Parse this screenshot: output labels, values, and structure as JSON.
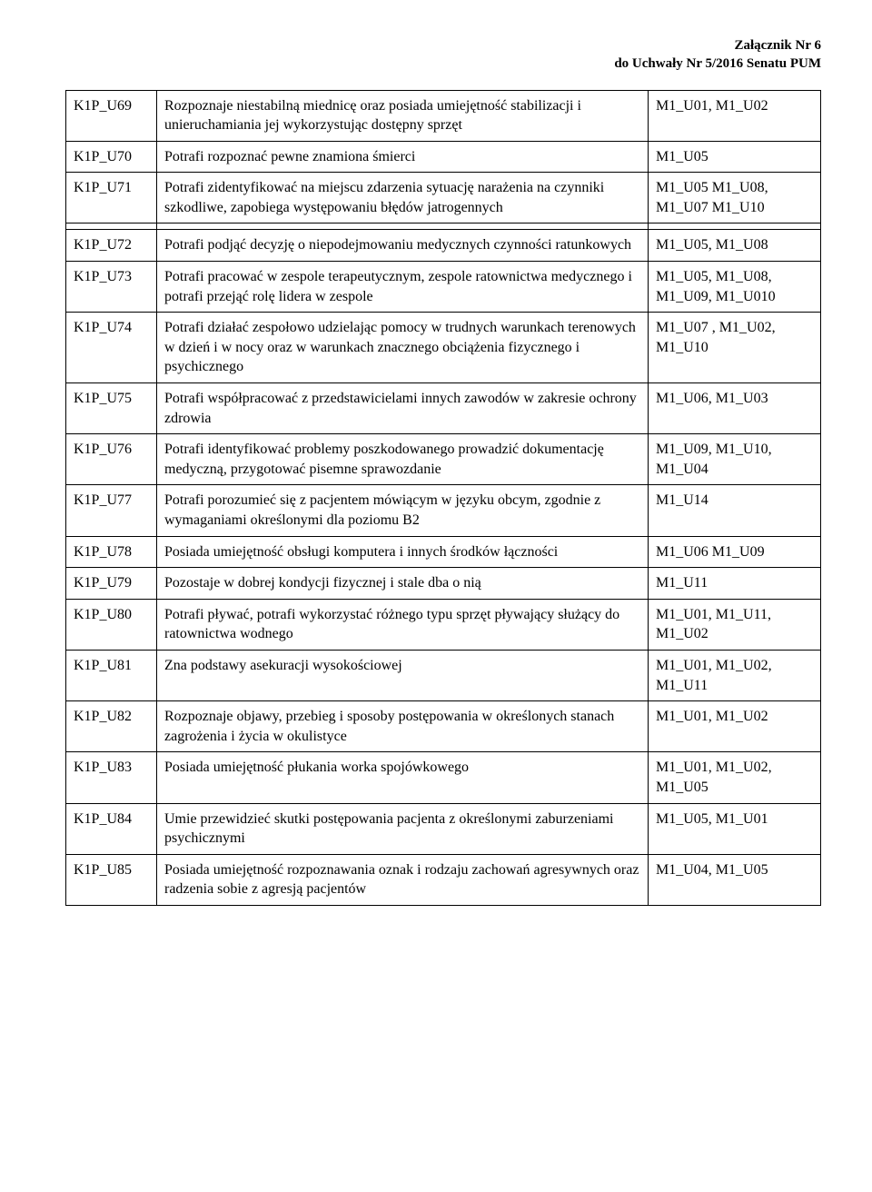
{
  "header": {
    "line1": "Załącznik Nr 6",
    "line2": "do Uchwały Nr 5/2016 Senatu PUM"
  },
  "groups": [
    {
      "rows": [
        {
          "code": "K1P_U69",
          "desc": "Rozpoznaje niestabilną miednicę oraz posiada umiejętność stabilizacji i unieruchamiania jej wykorzystując dostępny sprzęt",
          "ref": "M1_U01, M1_U02"
        },
        {
          "code": "K1P_U70",
          "desc": "Potrafi rozpoznać pewne znamiona śmierci",
          "ref": "M1_U05"
        },
        {
          "code": "K1P_U71",
          "desc": "Potrafi zidentyfikować na miejscu zdarzenia sytuację narażenia na czynniki szkodliwe, zapobiega występowaniu błędów jatrogennych",
          "ref": "M1_U05 M1_U08, M1_U07 M1_U10"
        }
      ]
    },
    {
      "rows": [
        {
          "code": "K1P_U72",
          "desc": "Potrafi podjąć decyzję o niepodejmowaniu medycznych czynności ratunkowych",
          "ref": "M1_U05, M1_U08"
        },
        {
          "code": "K1P_U73",
          "desc": "Potrafi pracować w zespole terapeutycznym, zespole ratownictwa medycznego i potrafi przejąć rolę lidera w zespole",
          "ref": "M1_U05, M1_U08, M1_U09, M1_U010"
        },
        {
          "code": "K1P_U74",
          "desc": "Potrafi działać zespołowo udzielając pomocy w trudnych warunkach terenowych w dzień i w nocy oraz w warunkach znacznego obciążenia fizycznego i psychicznego",
          "ref": "M1_U07 , M1_U02, M1_U10"
        },
        {
          "code": "K1P_U75",
          "desc": "Potrafi współpracować z przedstawicielami innych zawodów w zakresie ochrony zdrowia",
          "ref": "M1_U06, M1_U03"
        },
        {
          "code": "K1P_U76",
          "desc": "Potrafi identyfikować problemy poszkodowanego prowadzić dokumentację medyczną,  przygotować pisemne sprawozdanie",
          "ref": "M1_U09, M1_U10, M1_U04"
        },
        {
          "code": "K1P_U77",
          "desc": "Potrafi porozumieć się z pacjentem mówiącym w języku obcym, zgodnie z wymaganiami określonymi dla poziomu B2",
          "ref": "M1_U14"
        },
        {
          "code": "K1P_U78",
          "desc": "Posiada umiejętność obsługi komputera i innych środków łączności",
          "ref": "M1_U06 M1_U09"
        },
        {
          "code": "K1P_U79",
          "desc": "Pozostaje w dobrej kondycji fizycznej i stale dba o nią",
          "ref": "M1_U11"
        },
        {
          "code": "K1P_U80",
          "desc": "Potrafi pływać, potrafi wykorzystać różnego typu sprzęt pływający służący do ratownictwa wodnego",
          "ref": "M1_U01, M1_U11, M1_U02"
        },
        {
          "code": "K1P_U81",
          "desc": "Zna podstawy asekuracji wysokościowej",
          "ref": "M1_U01, M1_U02, M1_U11"
        },
        {
          "code": "K1P_U82",
          "desc": "Rozpoznaje objawy, przebieg i sposoby postępowania w określonych stanach zagrożenia i życia w okulistyce",
          "ref": "M1_U01, M1_U02"
        },
        {
          "code": "K1P_U83",
          "desc": "Posiada umiejętność płukania worka spojówkowego",
          "ref": "M1_U01, M1_U02, M1_U05"
        },
        {
          "code": "K1P_U84",
          "desc": "Umie przewidzieć skutki postępowania pacjenta z określonymi zaburzeniami psychicznymi",
          "ref": "M1_U05, M1_U01"
        },
        {
          "code": "K1P_U85",
          "desc": "Posiada umiejętność rozpoznawania oznak i rodzaju zachowań agresywnych oraz radzenia sobie z agresją pacjentów",
          "ref": "M1_U04, M1_U05"
        }
      ]
    }
  ]
}
